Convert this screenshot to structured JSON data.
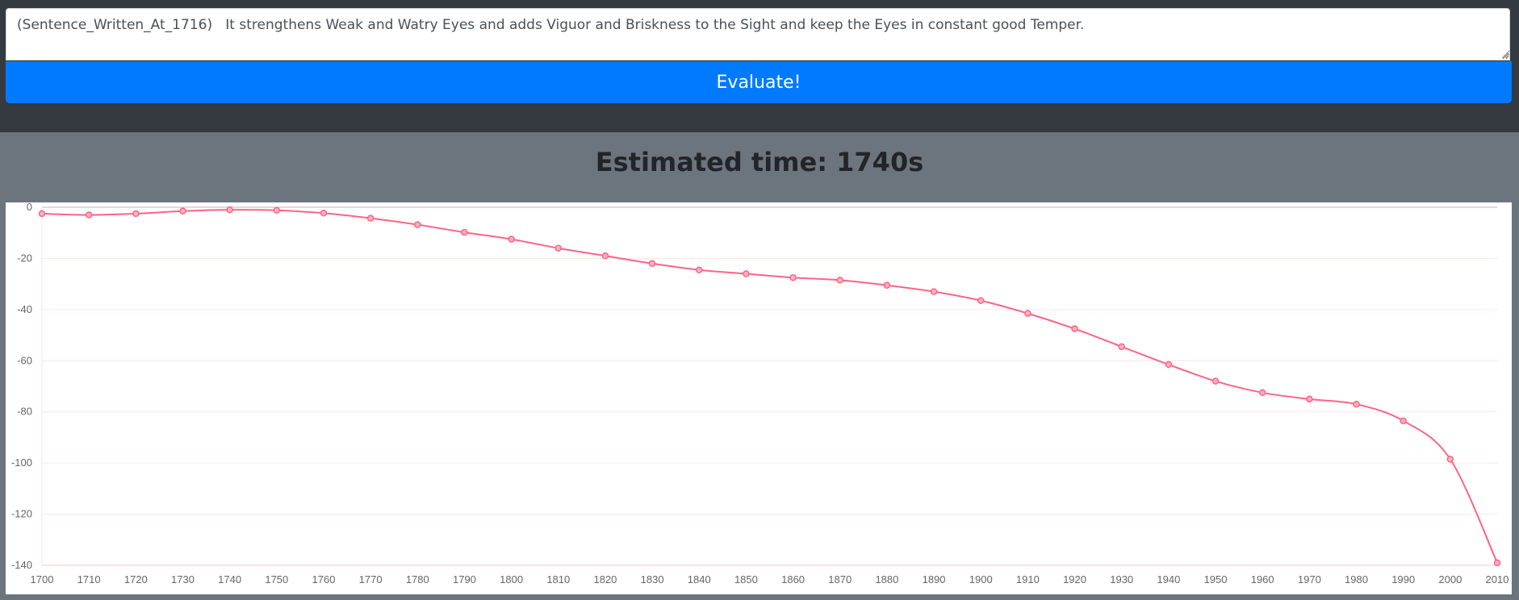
{
  "input": {
    "sentence_value": "(Sentence_Written_At_1716)   It strengthens Weak and Watry Eyes and adds Viguor and Briskness to the Sight and keep the Eyes in constant good Temper."
  },
  "evaluate_button": {
    "label": "Evaluate!"
  },
  "result": {
    "title": "Estimated time: 1740s"
  },
  "colors": {
    "accent": "#007bff",
    "line": "#ff6384",
    "topbar": "#343a40",
    "background": "#6c757d"
  },
  "chart_data": {
    "type": "line",
    "x": [
      1700,
      1710,
      1720,
      1730,
      1740,
      1750,
      1760,
      1770,
      1780,
      1790,
      1800,
      1810,
      1820,
      1830,
      1840,
      1850,
      1860,
      1870,
      1880,
      1890,
      1900,
      1910,
      1920,
      1930,
      1940,
      1950,
      1960,
      1970,
      1980,
      1990,
      2000,
      2010
    ],
    "series": [
      {
        "values": [
          -2.5,
          -3,
          -2.5,
          -1.5,
          -1,
          -1.2,
          -2.3,
          -4.3,
          -6.8,
          -9.8,
          -12.5,
          -16,
          -19,
          -22,
          -24.5,
          -26,
          -27.5,
          -28.5,
          -30.5,
          -33,
          -36.5,
          -41.5,
          -47.5,
          -54.5,
          -61.5,
          -68,
          -72.5,
          -75,
          -77,
          -83.5,
          -98.5,
          -139
        ]
      }
    ],
    "title": "",
    "xlabel": "",
    "ylabel": "",
    "ylim": [
      -140,
      0
    ],
    "yticks": [
      0,
      -20,
      -40,
      -60,
      -80,
      -100,
      -120,
      -140
    ],
    "grid": true,
    "legend": "none"
  }
}
